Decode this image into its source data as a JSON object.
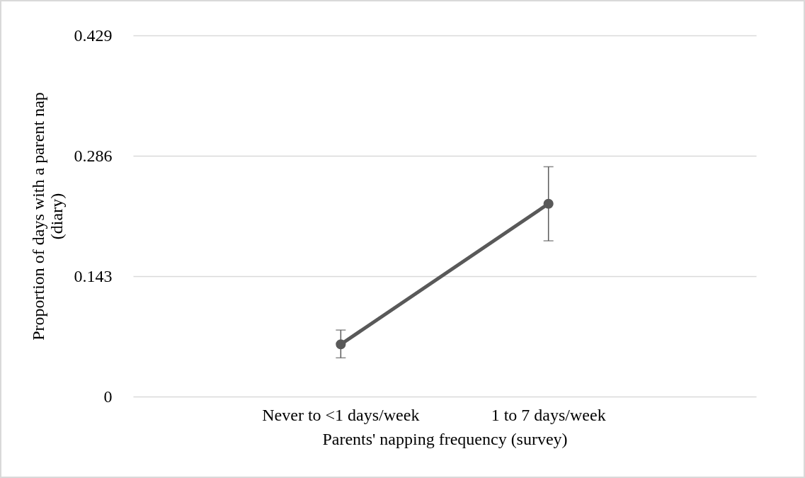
{
  "chart_data": {
    "type": "line",
    "xlabel": "Parents' napping frequency (survey)",
    "ylabel": "Proportion of days with a parent nap (diary)",
    "categories": [
      "Never to <1 days/week",
      "1 to 7 days/week"
    ],
    "series": [
      {
        "color": "#595959",
        "values": [
          0.062,
          0.229
        ],
        "errors": [
          [
            0.046,
            0.079
          ],
          [
            0.185,
            0.273
          ]
        ]
      }
    ],
    "ylim": [
      0,
      0.429
    ],
    "yticks": [
      0,
      0.143,
      0.286,
      0.429
    ],
    "grid": "y",
    "marker": "circle",
    "line_style": "solid"
  }
}
